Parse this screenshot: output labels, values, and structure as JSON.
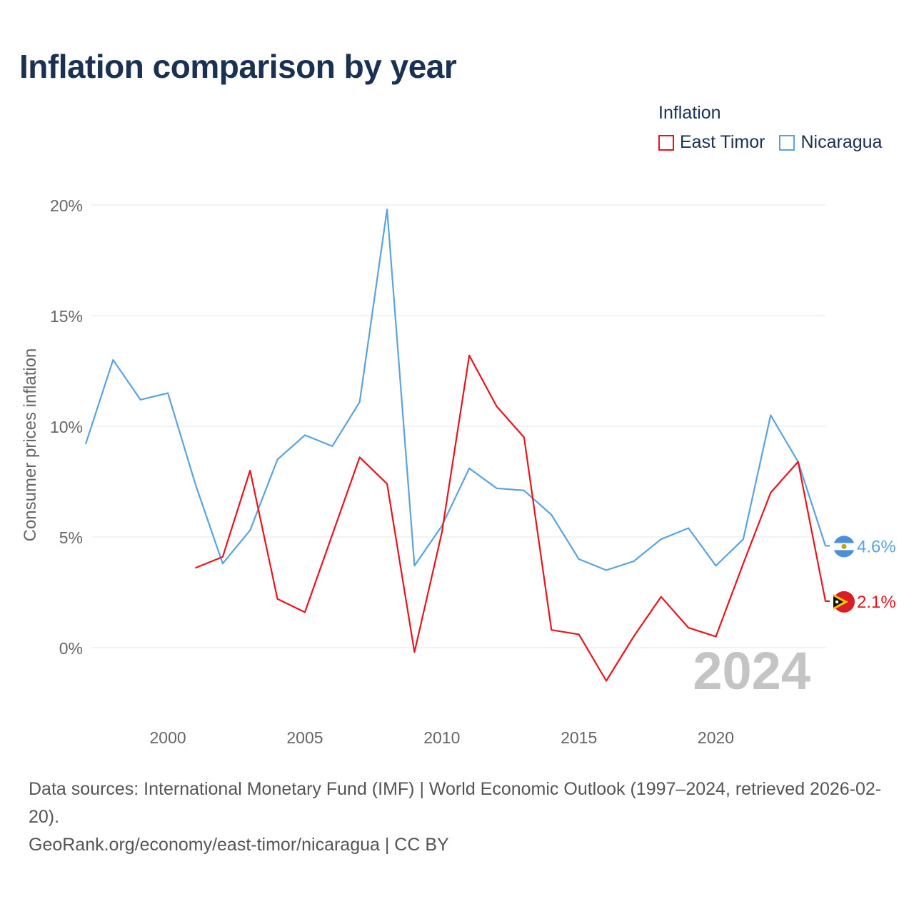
{
  "title": "Inflation comparison by year",
  "legend": {
    "title": "Inflation",
    "items": [
      {
        "label": "East Timor",
        "color": "#e8141c"
      },
      {
        "label": "Nicaragua",
        "color": "#5aa3e0"
      }
    ]
  },
  "footer": {
    "sources": "Data sources: International Monetary Fund (IMF) | World Economic Outlook (1997–2024, retrieved 2026-02-20).",
    "credit": "GeoRank.org/economy/east-timor/nicaragua | CC BY"
  },
  "chart_data": {
    "type": "line",
    "title": "Inflation comparison by year",
    "ylabel": "Consumer prices inflation",
    "xlabel": "",
    "xlim": [
      1997,
      2024
    ],
    "ylim": [
      -2.5,
      20.5
    ],
    "yticks": [
      0,
      5,
      10,
      15,
      20
    ],
    "ytick_labels": [
      "0%",
      "5%",
      "10%",
      "15%",
      "20%"
    ],
    "xticks": [
      2000,
      2005,
      2010,
      2015,
      2020
    ],
    "xtick_labels": [
      "2000",
      "2005",
      "2010",
      "2015",
      "2020"
    ],
    "grid": true,
    "year_watermark": "2024",
    "series": [
      {
        "name": "Nicaragua",
        "color": "#5aa3e0",
        "end_label": "4.6%",
        "points": [
          [
            1997,
            9.2
          ],
          [
            1998,
            13.0
          ],
          [
            1999,
            11.2
          ],
          [
            2000,
            11.5
          ],
          [
            2001,
            7.4
          ],
          [
            2002,
            3.8
          ],
          [
            2003,
            5.3
          ],
          [
            2004,
            8.5
          ],
          [
            2005,
            9.6
          ],
          [
            2006,
            9.1
          ],
          [
            2007,
            11.1
          ],
          [
            2008,
            19.8
          ],
          [
            2009,
            3.7
          ],
          [
            2010,
            5.5
          ],
          [
            2011,
            8.1
          ],
          [
            2012,
            7.2
          ],
          [
            2013,
            7.1
          ],
          [
            2014,
            6.0
          ],
          [
            2015,
            4.0
          ],
          [
            2016,
            3.5
          ],
          [
            2017,
            3.9
          ],
          [
            2018,
            4.9
          ],
          [
            2019,
            5.4
          ],
          [
            2020,
            3.7
          ],
          [
            2021,
            4.9
          ],
          [
            2022,
            10.5
          ],
          [
            2023,
            8.4
          ],
          [
            2024,
            4.6
          ]
        ]
      },
      {
        "name": "East Timor",
        "color": "#e8141c",
        "end_label": "2.1%",
        "points": [
          [
            2001,
            3.6
          ],
          [
            2002,
            4.1
          ],
          [
            2003,
            8.0
          ],
          [
            2004,
            2.2
          ],
          [
            2005,
            1.6
          ],
          [
            2006,
            5.1
          ],
          [
            2007,
            8.6
          ],
          [
            2008,
            7.4
          ],
          [
            2009,
            -0.2
          ],
          [
            2010,
            5.2
          ],
          [
            2011,
            13.2
          ],
          [
            2012,
            10.9
          ],
          [
            2013,
            9.5
          ],
          [
            2014,
            0.8
          ],
          [
            2015,
            0.6
          ],
          [
            2016,
            -1.5
          ],
          [
            2017,
            0.5
          ],
          [
            2018,
            2.3
          ],
          [
            2019,
            0.9
          ],
          [
            2020,
            0.5
          ],
          [
            2021,
            3.8
          ],
          [
            2022,
            7.0
          ],
          [
            2023,
            8.4
          ],
          [
            2024,
            2.1
          ]
        ]
      }
    ]
  }
}
